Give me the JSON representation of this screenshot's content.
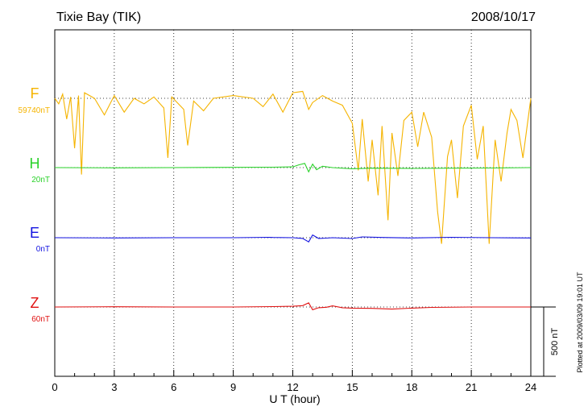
{
  "header": {
    "station": "Tixie Bay (TIK)",
    "date": "2008/10/17"
  },
  "footer": {
    "plotted": "Plotted at 2009/03/09 19:01 UT"
  },
  "chart_data": {
    "type": "line",
    "xlabel": "U T (hour)",
    "xlim": [
      0,
      24
    ],
    "xticks": [
      "0",
      "3",
      "6",
      "9",
      "12",
      "15",
      "18",
      "21",
      "24"
    ],
    "scale_bar": {
      "label": "500 nT",
      "value": 500
    },
    "grid": "dotted",
    "series": [
      {
        "name": "F",
        "baseline": "59740nT",
        "color": "#f5b400",
        "points": [
          [
            0,
            0
          ],
          [
            0.2,
            -40
          ],
          [
            0.4,
            30
          ],
          [
            0.6,
            -150
          ],
          [
            0.8,
            10
          ],
          [
            1.0,
            -360
          ],
          [
            1.2,
            20
          ],
          [
            1.35,
            -550
          ],
          [
            1.5,
            40
          ],
          [
            2,
            0
          ],
          [
            2.5,
            -120
          ],
          [
            3,
            20
          ],
          [
            3.5,
            -100
          ],
          [
            4,
            0
          ],
          [
            4.5,
            -40
          ],
          [
            5,
            10
          ],
          [
            5.5,
            -70
          ],
          [
            5.7,
            -430
          ],
          [
            5.9,
            10
          ],
          [
            6.5,
            -80
          ],
          [
            6.7,
            -340
          ],
          [
            7,
            -20
          ],
          [
            7.5,
            -90
          ],
          [
            8,
            0
          ],
          [
            9,
            20
          ],
          [
            10,
            0
          ],
          [
            10.5,
            -60
          ],
          [
            11,
            30
          ],
          [
            11.5,
            -100
          ],
          [
            12,
            40
          ],
          [
            12.5,
            50
          ],
          [
            12.8,
            -80
          ],
          [
            13,
            -30
          ],
          [
            13.5,
            20
          ],
          [
            14,
            -20
          ],
          [
            14.5,
            -50
          ],
          [
            15,
            -180
          ],
          [
            15.3,
            -520
          ],
          [
            15.5,
            -150
          ],
          [
            15.8,
            -600
          ],
          [
            16,
            -300
          ],
          [
            16.3,
            -700
          ],
          [
            16.5,
            -200
          ],
          [
            16.8,
            -880
          ],
          [
            17,
            -250
          ],
          [
            17.3,
            -560
          ],
          [
            17.6,
            -160
          ],
          [
            18,
            -100
          ],
          [
            18.3,
            -350
          ],
          [
            18.6,
            -100
          ],
          [
            19,
            -280
          ],
          [
            19.3,
            -820
          ],
          [
            19.5,
            -1050
          ],
          [
            19.8,
            -420
          ],
          [
            20,
            -300
          ],
          [
            20.3,
            -720
          ],
          [
            20.6,
            -200
          ],
          [
            21,
            -50
          ],
          [
            21.3,
            -440
          ],
          [
            21.6,
            -200
          ],
          [
            21.9,
            -1050
          ],
          [
            22.2,
            -300
          ],
          [
            22.5,
            -600
          ],
          [
            22.8,
            -250
          ],
          [
            23,
            -80
          ],
          [
            23.3,
            -160
          ],
          [
            23.6,
            -430
          ],
          [
            24,
            0
          ]
        ]
      },
      {
        "name": "H",
        "baseline": "20nT",
        "color": "#2ad22a",
        "points": [
          [
            0,
            0
          ],
          [
            3,
            -2
          ],
          [
            6,
            0
          ],
          [
            9,
            2
          ],
          [
            11,
            3
          ],
          [
            12,
            5
          ],
          [
            12.3,
            20
          ],
          [
            12.6,
            30
          ],
          [
            12.8,
            -30
          ],
          [
            13,
            25
          ],
          [
            13.2,
            -15
          ],
          [
            13.5,
            10
          ],
          [
            14,
            0
          ],
          [
            15,
            -8
          ],
          [
            16,
            -4
          ],
          [
            18,
            -6
          ],
          [
            20,
            -4
          ],
          [
            22,
            -3
          ],
          [
            24,
            0
          ]
        ]
      },
      {
        "name": "E",
        "baseline": "0nT",
        "color": "#1212e0",
        "points": [
          [
            0,
            0
          ],
          [
            3,
            -2
          ],
          [
            6,
            0
          ],
          [
            9,
            0
          ],
          [
            10.8,
            3
          ],
          [
            11,
            2
          ],
          [
            12,
            0
          ],
          [
            12.5,
            -5
          ],
          [
            12.8,
            -30
          ],
          [
            13,
            20
          ],
          [
            13.3,
            -5
          ],
          [
            13.7,
            -3
          ],
          [
            14,
            0
          ],
          [
            15,
            -6
          ],
          [
            15.5,
            6
          ],
          [
            16.5,
            2
          ],
          [
            18,
            -2
          ],
          [
            20,
            3
          ],
          [
            22,
            0
          ],
          [
            24,
            -2
          ]
        ]
      },
      {
        "name": "Z",
        "baseline": "60nT",
        "color": "#e01212",
        "points": [
          [
            0,
            0
          ],
          [
            3,
            2
          ],
          [
            6,
            0
          ],
          [
            9,
            0
          ],
          [
            11,
            3
          ],
          [
            12,
            5
          ],
          [
            12.5,
            10
          ],
          [
            12.8,
            30
          ],
          [
            13,
            -20
          ],
          [
            13.3,
            -5
          ],
          [
            13.7,
            -2
          ],
          [
            14,
            8
          ],
          [
            14.5,
            -5
          ],
          [
            15,
            -8
          ],
          [
            16,
            -10
          ],
          [
            17,
            -15
          ],
          [
            18,
            -8
          ],
          [
            19,
            -3
          ],
          [
            21,
            0
          ],
          [
            24,
            0
          ]
        ]
      }
    ]
  }
}
